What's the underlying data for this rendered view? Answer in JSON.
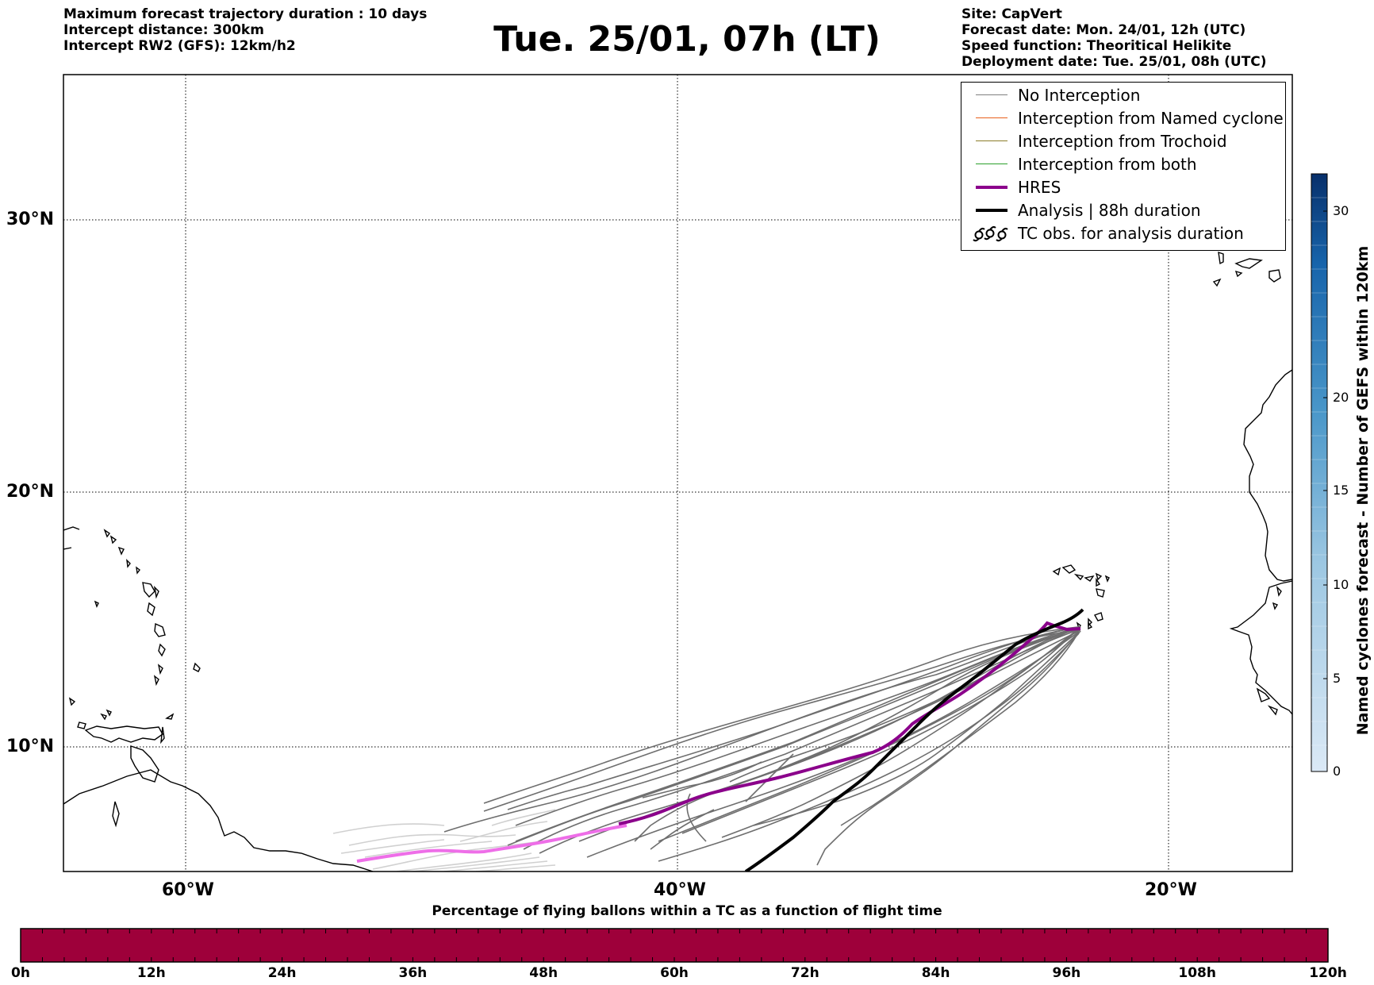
{
  "header": {
    "left_lines": [
      "Maximum forecast trajectory duration : 10 days",
      "Intercept distance: 300km",
      "Intercept RW2 (GFS):  12km/h2"
    ],
    "title": "Tue. 25/01, 07h (LT)",
    "right_lines": [
      "Site: CapVert",
      "Forecast date: Mon. 24/01, 12h (UTC)",
      "Speed function: Theoritical Helikite",
      "Deployment date: Tue. 25/01, 08h (UTC)"
    ]
  },
  "map": {
    "lat_ticks": [
      "30°N",
      "20°N",
      "10°N"
    ],
    "lon_ticks": [
      "60°W",
      "40°W",
      "20°W"
    ]
  },
  "legend": {
    "items": [
      {
        "label": "No Interception",
        "color": "#808080"
      },
      {
        "label": "Interception from Named cyclone",
        "color": "#e8601c"
      },
      {
        "label": "Interception from Trochoid",
        "color": "#8b7d2a"
      },
      {
        "label": "Interception from both",
        "color": "#2ca02c"
      },
      {
        "label": "HRES",
        "color": "#8b008b"
      },
      {
        "label": "Analysis | 88h duration",
        "color": "#000000"
      },
      {
        "label": "TC obs. for analysis duration",
        "color": "#000000",
        "icon": "cyclone-symbols-icon"
      }
    ]
  },
  "colorbar_right": {
    "label": "Named cyclones forecast - Number of GEFS within 120km",
    "ticks": [
      "0",
      "5",
      "10",
      "15",
      "20",
      "30"
    ]
  },
  "colorbar_bottom": {
    "title": "Percentage of flying ballons within a TC as a function of flight time",
    "ticks": [
      "0h",
      "12h",
      "24h",
      "36h",
      "48h",
      "60h",
      "72h",
      "84h",
      "96h",
      "108h",
      "120h"
    ],
    "color": "#9e003a"
  }
}
